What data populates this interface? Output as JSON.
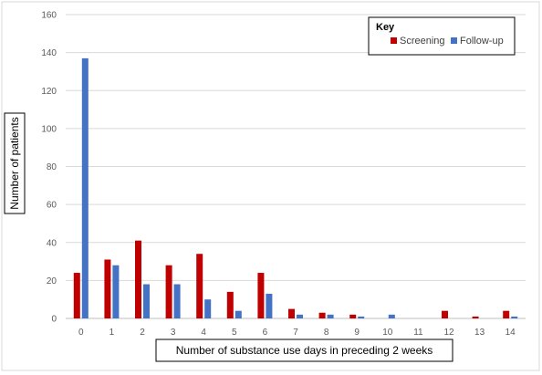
{
  "chart_data": {
    "type": "bar",
    "categories": [
      "0",
      "1",
      "2",
      "3",
      "4",
      "5",
      "6",
      "7",
      "8",
      "9",
      "10",
      "11",
      "12",
      "13",
      "14"
    ],
    "series": [
      {
        "name": "Screening",
        "color": "#C00000",
        "values": [
          24,
          31,
          41,
          28,
          34,
          14,
          24,
          5,
          3,
          2,
          0,
          0,
          4,
          1,
          4
        ]
      },
      {
        "name": "Follow-up",
        "color": "#4472C4",
        "values": [
          137,
          28,
          18,
          18,
          10,
          4,
          13,
          2,
          2,
          1,
          2,
          0,
          0,
          0,
          1
        ]
      }
    ],
    "xlabel": "Number of substance use days in preceding 2 weeks",
    "ylabel": "Number of patients",
    "ylim": [
      0,
      160
    ],
    "yticks": [
      0,
      20,
      40,
      60,
      80,
      100,
      120,
      140,
      160
    ],
    "grid": true,
    "legend": {
      "title": "Key",
      "position": "top-right"
    }
  }
}
